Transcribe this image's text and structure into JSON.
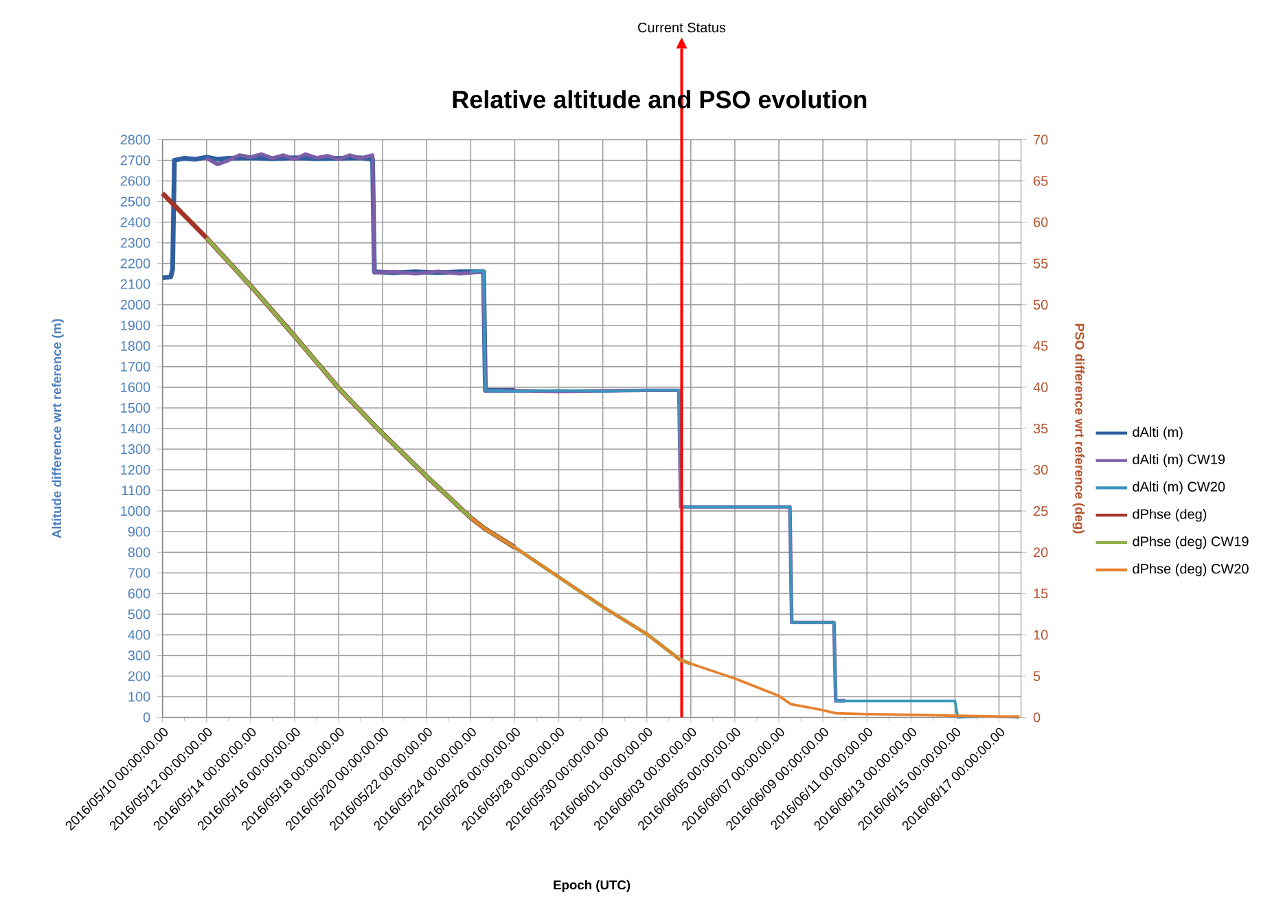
{
  "chart_data": {
    "type": "line",
    "title": "Relative altitude and PSO evolution",
    "xlabel": "Epoch (UTC)",
    "ylabel": "Altitude difference wrt reference (m)",
    "y2label": "PSO difference wrt reference (deg)",
    "xlim": [
      "2016-05-10",
      "2016-06-18"
    ],
    "xticks": [
      {
        "value": "2016-05-10",
        "label": "2016/05/10 00:00:00.00"
      },
      {
        "value": "2016-05-11",
        "label": null
      },
      {
        "value": "2016-05-12",
        "label": "2016/05/12 00:00:00.00"
      },
      {
        "value": "2016-05-13",
        "label": null
      },
      {
        "value": "2016-05-14",
        "label": "2016/05/14 00:00:00.00"
      },
      {
        "value": "2016-05-15",
        "label": null
      },
      {
        "value": "2016-05-16",
        "label": "2016/05/16 00:00:00.00"
      },
      {
        "value": "2016-05-17",
        "label": null
      },
      {
        "value": "2016-05-18",
        "label": "2016/05/18 00:00:00.00"
      },
      {
        "value": "2016-05-19",
        "label": null
      },
      {
        "value": "2016-05-20",
        "label": "2016/05/20 00:00:00.00"
      },
      {
        "value": "2016-05-21",
        "label": null
      },
      {
        "value": "2016-05-22",
        "label": "2016/05/22 00:00:00.00"
      },
      {
        "value": "2016-05-23",
        "label": null
      },
      {
        "value": "2016-05-24",
        "label": "2016/05/24 00:00:00.00"
      },
      {
        "value": "2016-05-25",
        "label": null
      },
      {
        "value": "2016-05-26",
        "label": "2016/05/26 00:00:00.00"
      },
      {
        "value": "2016-05-27",
        "label": null
      },
      {
        "value": "2016-05-28",
        "label": "2016/05/28 00:00:00.00"
      },
      {
        "value": "2016-05-29",
        "label": null
      },
      {
        "value": "2016-05-30",
        "label": "2016/05/30 00:00:00.00"
      },
      {
        "value": "2016-05-31",
        "label": null
      },
      {
        "value": "2016-06-01",
        "label": "2016/06/01 00:00:00.00"
      },
      {
        "value": "2016-06-02",
        "label": null
      },
      {
        "value": "2016-06-03",
        "label": "2016/06/03 00:00:00.00"
      },
      {
        "value": "2016-06-04",
        "label": null
      },
      {
        "value": "2016-06-05",
        "label": "2016/06/05 00:00:00.00"
      },
      {
        "value": "2016-06-06",
        "label": null
      },
      {
        "value": "2016-06-07",
        "label": "2016/06/07 00:00:00.00"
      },
      {
        "value": "2016-06-08",
        "label": null
      },
      {
        "value": "2016-06-09",
        "label": "2016/06/09 00:00:00.00"
      },
      {
        "value": "2016-06-10",
        "label": null
      },
      {
        "value": "2016-06-11",
        "label": "2016/06/11 00:00:00.00"
      },
      {
        "value": "2016-06-12",
        "label": null
      },
      {
        "value": "2016-06-13",
        "label": "2016/06/13 00:00:00.00"
      },
      {
        "value": "2016-06-14",
        "label": null
      },
      {
        "value": "2016-06-15",
        "label": "2016/06/15 00:00:00.00"
      },
      {
        "value": "2016-06-16",
        "label": null
      },
      {
        "value": "2016-06-17",
        "label": "2016/06/17 00:00:00.00"
      }
    ],
    "ylim": [
      0,
      2800
    ],
    "yticks": [
      0,
      100,
      200,
      300,
      400,
      500,
      600,
      700,
      800,
      900,
      1000,
      1100,
      1200,
      1300,
      1400,
      1500,
      1600,
      1700,
      1800,
      1900,
      2000,
      2100,
      2200,
      2300,
      2400,
      2500,
      2600,
      2700,
      2800
    ],
    "y2lim": [
      0,
      70
    ],
    "y2ticks": [
      0,
      5,
      10,
      15,
      20,
      25,
      30,
      35,
      40,
      45,
      50,
      55,
      60,
      65,
      70
    ],
    "grid": true,
    "legend": "right",
    "ref_lines": [
      {
        "axis": "x",
        "value": "2016-06-02T14:00",
        "label": "Current Status",
        "color": "#ff0000"
      }
    ],
    "series": [
      {
        "name": "dAlti (m)",
        "color": "#2f5f9e",
        "x": [
          "2016-05-10T00:00",
          "2016-05-10T09:00",
          "2016-05-10T11:00",
          "2016-05-10T13:00",
          "2016-05-11T00:00",
          "2016-05-11T12:00",
          "2016-05-12T00:00",
          "2016-05-12T12:00",
          "2016-05-13T00:00",
          "2016-05-14T00:00",
          "2016-05-15T00:00",
          "2016-05-16T00:00",
          "2016-05-17T00:00",
          "2016-05-18T00:00",
          "2016-05-19T00:00",
          "2016-05-19T13:00",
          "2016-05-19T15:00",
          "2016-05-20T12:00",
          "2016-05-21T12:00",
          "2016-05-22T12:00",
          "2016-05-23T12:00",
          "2016-05-24T14:00",
          "2016-05-24T16:00",
          "2016-05-26T00:00"
        ],
        "values": [
          2130,
          2135,
          2170,
          2700,
          2710,
          2705,
          2715,
          2705,
          2710,
          2712,
          2708,
          2712,
          2708,
          2710,
          2712,
          2705,
          2160,
          2155,
          2160,
          2155,
          2160,
          2160,
          1585,
          1585
        ]
      },
      {
        "name": "dAlti (m) CW19",
        "color": "#7b5ea7",
        "x": [
          "2016-05-12T00:00",
          "2016-05-12T12:00",
          "2016-05-13T00:00",
          "2016-05-13T12:00",
          "2016-05-14T00:00",
          "2016-05-14T12:00",
          "2016-05-15T00:00",
          "2016-05-15T12:00",
          "2016-05-16T00:00",
          "2016-05-16T12:00",
          "2016-05-17T00:00",
          "2016-05-17T12:00",
          "2016-05-18T00:00",
          "2016-05-18T12:00",
          "2016-05-19T00:00",
          "2016-05-19T13:00",
          "2016-05-19T15:00",
          "2016-05-20T12:00",
          "2016-05-21T12:00",
          "2016-05-22T12:00",
          "2016-05-23T12:00",
          "2016-05-24T14:00",
          "2016-05-24T16:00",
          "2016-05-28T00:00",
          "2016-06-01T00:00",
          "2016-06-02T11:00",
          "2016-06-02T13:00",
          "2016-06-05T00:00",
          "2016-06-07T12:00",
          "2016-06-07T14:00",
          "2016-06-09T12:00",
          "2016-06-09T14:00",
          "2016-06-10T00:00"
        ],
        "values": [
          2710,
          2680,
          2700,
          2725,
          2715,
          2730,
          2710,
          2725,
          2705,
          2730,
          2712,
          2722,
          2705,
          2725,
          2710,
          2725,
          2155,
          2160,
          2150,
          2162,
          2150,
          2160,
          1585,
          1580,
          1585,
          1585,
          1020,
          1020,
          1020,
          460,
          460,
          80,
          80
        ]
      },
      {
        "name": "dAlti (m) CW20",
        "color": "#3a96bd",
        "x": [
          "2016-05-24T00:00",
          "2016-05-24T14:00",
          "2016-05-24T16:00",
          "2016-05-26T00:00",
          "2016-05-28T00:00",
          "2016-05-30T00:00",
          "2016-06-01T00:00",
          "2016-06-02T11:00",
          "2016-06-02T13:00",
          "2016-06-05T00:00",
          "2016-06-07T12:00",
          "2016-06-07T14:00",
          "2016-06-09T12:00",
          "2016-06-09T14:00",
          "2016-06-12T00:00",
          "2016-06-15T00:00",
          "2016-06-15T03:00",
          "2016-06-16T12:00",
          "2016-06-17T22:00"
        ],
        "values": [
          2160,
          2165,
          1585,
          1580,
          1585,
          1580,
          1585,
          1585,
          1020,
          1020,
          1020,
          460,
          460,
          80,
          80,
          80,
          0,
          5,
          0
        ]
      },
      {
        "name": "dPhse (deg)",
        "color": "#a33428",
        "axis": "y2",
        "x": [
          "2016-05-10T00:00",
          "2016-05-12T00:00",
          "2016-05-14T00:00",
          "2016-05-16T00:00",
          "2016-05-18T00:00",
          "2016-05-19T21:00",
          "2016-05-22T00:00",
          "2016-05-24T00:00",
          "2016-05-24T15:00",
          "2016-05-26T00:00"
        ],
        "values": [
          63.5,
          58.1,
          52.3,
          46.2,
          39.9,
          34.7,
          29.2,
          24.2,
          22.9,
          20.6
        ]
      },
      {
        "name": "dPhse (deg) CW19",
        "color": "#8db04c",
        "axis": "y2",
        "x": [
          "2016-05-12T00:00",
          "2016-05-14T00:00",
          "2016-05-16T00:00",
          "2016-05-18T00:00",
          "2016-05-19T21:00",
          "2016-05-22T00:00",
          "2016-05-24T00:00",
          "2016-05-24T15:00",
          "2016-05-26T00:00",
          "2016-05-28T00:00",
          "2016-05-30T00:00",
          "2016-06-01T00:00",
          "2016-06-02T12:00",
          "2016-06-03T00:00"
        ],
        "values": [
          58.1,
          52.3,
          46.2,
          39.9,
          34.7,
          29.2,
          24.2,
          22.9,
          20.6,
          17.0,
          13.4,
          10.1,
          7.0,
          6.5
        ]
      },
      {
        "name": "dPhse (deg) CW20",
        "color": "#e8802d",
        "axis": "y2",
        "x": [
          "2016-05-24T00:00",
          "2016-05-24T15:00",
          "2016-05-26T00:00",
          "2016-05-28T00:00",
          "2016-05-30T00:00",
          "2016-06-01T00:00",
          "2016-06-02T12:00",
          "2016-06-03T00:00",
          "2016-06-05T00:00",
          "2016-06-07T00:00",
          "2016-06-07T13:00",
          "2016-06-08T23:00",
          "2016-06-09T14:00",
          "2016-06-11T00:00",
          "2016-06-13T00:00",
          "2016-06-15T00:00",
          "2016-06-17T00:00",
          "2016-06-17T22:00"
        ],
        "values": [
          24.2,
          22.9,
          20.6,
          17.0,
          13.4,
          10.1,
          7.0,
          6.5,
          4.7,
          2.6,
          1.6,
          0.9,
          0.5,
          0.4,
          0.3,
          0.2,
          0.1,
          0.1
        ]
      }
    ]
  }
}
